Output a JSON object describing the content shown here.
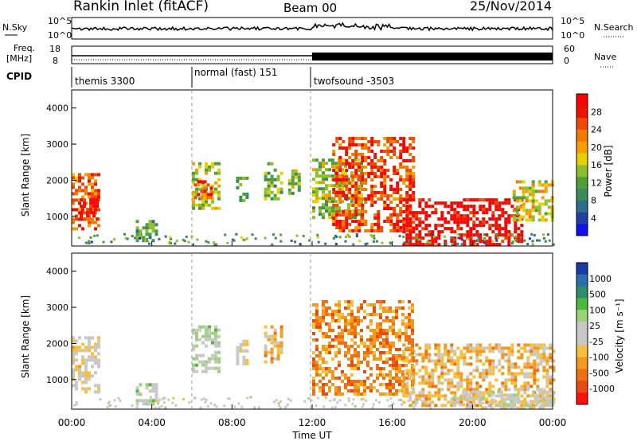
{
  "header": {
    "station": "Rankin Inlet (fitACF)",
    "beam": "Beam 00",
    "date": "25/Nov/2014"
  },
  "noise_panel": {
    "left_label": "N.Sky",
    "right_label": "N.Search",
    "left_ticks": [
      "10^5",
      "10^0"
    ],
    "right_ticks": [
      "10^5",
      "10^0"
    ]
  },
  "freq_panel": {
    "left_label_1": "Freq.",
    "left_label_2": "[MHz]",
    "right_label": "Nave",
    "left_ticks": [
      "18",
      "8"
    ],
    "right_ticks": [
      "60",
      "0"
    ]
  },
  "cpid_panel": {
    "label": "CPID",
    "segments": [
      {
        "start_hour": 0,
        "end_hour": 6,
        "label": "themis 3300"
      },
      {
        "start_hour": 6,
        "end_hour": 12,
        "label": "normal (fast) 151"
      },
      {
        "start_hour": 12,
        "end_hour": 24,
        "label": "twofsound -3503"
      }
    ]
  },
  "power_panel": {
    "ylabel": "Slant Range [km]",
    "yticks": [
      "1000",
      "2000",
      "3000",
      "4000"
    ],
    "colorbar_title": "Power [dB]",
    "colorbar_ticks": [
      "4",
      "8",
      "12",
      "16",
      "20",
      "24",
      "28"
    ],
    "colors": [
      "#1010ee",
      "#2040a8",
      "#2e6e8c",
      "#3b8a5a",
      "#4f9e3c",
      "#8cbf2a",
      "#e6d000",
      "#f5a000",
      "#f27a00",
      "#ee4a00",
      "#e81400",
      "#ff0000"
    ]
  },
  "velocity_panel": {
    "ylabel": "Slant Range [km]",
    "yticks": [
      "1000",
      "2000",
      "3000",
      "4000"
    ],
    "colorbar_title": "Velocity [m s⁻¹]",
    "colorbar_ticks": [
      "1000",
      "500",
      "100",
      "25",
      "-25",
      "-100",
      "-500",
      "-1000"
    ],
    "colors": [
      "#1a3aa8",
      "#2a6eb0",
      "#2f8c6a",
      "#4eb83c",
      "#9cd37a",
      "#c8c8c8",
      "#c8c8c8",
      "#f5c040",
      "#f29a20",
      "#ee7010",
      "#e84a10",
      "#ff1010"
    ]
  },
  "time_axis": {
    "xlabel": "Time UT",
    "ticks": [
      "00:00",
      "04:00",
      "08:00",
      "12:00",
      "16:00",
      "20:00",
      "00:00"
    ]
  },
  "chart_data": [
    {
      "type": "heatmap",
      "title": "Power [dB]",
      "xlabel": "Time UT",
      "ylabel": "Slant Range [km]",
      "xlim": [
        0,
        24
      ],
      "ylim": [
        180,
        4500
      ],
      "zlim": [
        0,
        30
      ],
      "echo_regions": [
        {
          "t0": 0.0,
          "t1": 1.4,
          "r0": 700,
          "r1": 2200,
          "value": 22
        },
        {
          "t0": 0.4,
          "t1": 1.2,
          "r0": 900,
          "r1": 1500,
          "value": 28
        },
        {
          "t0": 3.2,
          "t1": 4.2,
          "r0": 300,
          "r1": 900,
          "value": 10
        },
        {
          "t0": 6.0,
          "t1": 7.4,
          "r0": 1200,
          "r1": 2500,
          "value": 14
        },
        {
          "t0": 6.1,
          "t1": 6.9,
          "r0": 1500,
          "r1": 2000,
          "value": 24
        },
        {
          "t0": 8.2,
          "t1": 8.8,
          "r0": 1400,
          "r1": 2100,
          "value": 10
        },
        {
          "t0": 9.6,
          "t1": 10.4,
          "r0": 1500,
          "r1": 2500,
          "value": 12
        },
        {
          "t0": 10.8,
          "t1": 11.4,
          "r0": 1600,
          "r1": 2300,
          "value": 14
        },
        {
          "t0": 12.0,
          "t1": 14.5,
          "r0": 1000,
          "r1": 2600,
          "value": 14
        },
        {
          "t0": 13.0,
          "t1": 17.0,
          "r0": 600,
          "r1": 3200,
          "value": 24
        },
        {
          "t0": 16.5,
          "t1": 22.5,
          "r0": 250,
          "r1": 1500,
          "value": 29
        },
        {
          "t0": 22.0,
          "t1": 24.0,
          "r0": 900,
          "r1": 2000,
          "value": 16
        }
      ]
    },
    {
      "type": "heatmap",
      "title": "Velocity [m s⁻¹]",
      "xlabel": "Time UT",
      "ylabel": "Slant Range [km]",
      "xlim": [
        0,
        24
      ],
      "ylim": [
        180,
        4500
      ],
      "zlim": [
        -1000,
        1000
      ],
      "echo_regions": [
        {
          "t0": 0.0,
          "t1": 1.4,
          "r0": 700,
          "r1": 2200,
          "value": -100
        },
        {
          "t0": 3.2,
          "t1": 4.2,
          "r0": 300,
          "r1": 900,
          "value": 100
        },
        {
          "t0": 6.0,
          "t1": 7.4,
          "r0": 1200,
          "r1": 2500,
          "value": 100
        },
        {
          "t0": 8.2,
          "t1": 8.8,
          "r0": 1400,
          "r1": 2100,
          "value": -100
        },
        {
          "t0": 9.6,
          "t1": 10.4,
          "r0": 1500,
          "r1": 2500,
          "value": -300
        },
        {
          "t0": 12.0,
          "t1": 17.0,
          "r0": 600,
          "r1": 3200,
          "value": -500
        },
        {
          "t0": 16.5,
          "t1": 24.0,
          "r0": 250,
          "r1": 2000,
          "value": -300
        },
        {
          "t0": 19.0,
          "t1": 24.0,
          "r0": 250,
          "r1": 700,
          "value": 0
        }
      ]
    }
  ]
}
